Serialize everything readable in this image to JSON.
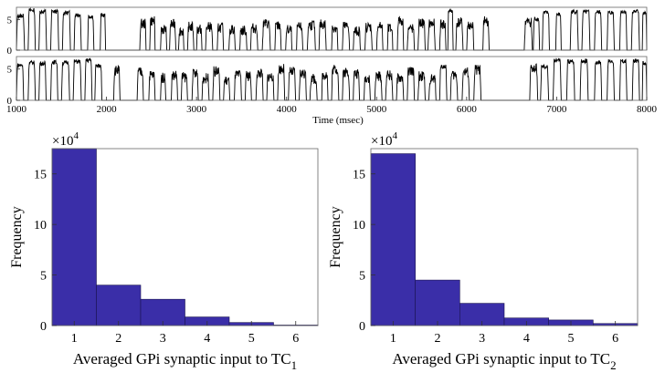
{
  "chart_data": [
    {
      "type": "line",
      "panel": "trace-top",
      "xlim": [
        1000,
        8000
      ],
      "ylim": [
        0,
        7
      ],
      "yticks": [
        0,
        5
      ],
      "xlabel": "",
      "note": "upper GPi synaptic input trace (burst pattern read approximately)",
      "bursts": [
        [
          1000,
          1090,
          5.6
        ],
        [
          1130,
          1210,
          6.5
        ],
        [
          1250,
          1335,
          6.3
        ],
        [
          1380,
          1470,
          6.3
        ],
        [
          1510,
          1600,
          6.1
        ],
        [
          1640,
          1720,
          5.8
        ],
        [
          1790,
          1860,
          5.5
        ],
        [
          1930,
          1990,
          5.7
        ],
        [
          2370,
          2440,
          4.3
        ],
        [
          2480,
          2540,
          4.8
        ],
        [
          2600,
          2670,
          3.4
        ],
        [
          2700,
          2770,
          4.2
        ],
        [
          2800,
          2860,
          3.1
        ],
        [
          2900,
          2970,
          3.8
        ],
        [
          3000,
          3060,
          3.4
        ],
        [
          3100,
          3180,
          3.8
        ],
        [
          3230,
          3300,
          3.7
        ],
        [
          3360,
          3430,
          3.4
        ],
        [
          3480,
          3560,
          3.2
        ],
        [
          3600,
          3680,
          3.6
        ],
        [
          3730,
          3820,
          4.3
        ],
        [
          3870,
          3940,
          4.0
        ],
        [
          3990,
          4060,
          3.3
        ],
        [
          4110,
          4180,
          3.7
        ],
        [
          4230,
          4320,
          4.1
        ],
        [
          4360,
          4440,
          4.2
        ],
        [
          4500,
          4570,
          3.7
        ],
        [
          4620,
          4700,
          3.9
        ],
        [
          4740,
          4820,
          3.1
        ],
        [
          4870,
          4950,
          3.8
        ],
        [
          5000,
          5070,
          3.9
        ],
        [
          5120,
          5180,
          3.5
        ],
        [
          5230,
          5300,
          4.8
        ],
        [
          5340,
          5420,
          3.5
        ],
        [
          5460,
          5540,
          4.4
        ],
        [
          5570,
          5650,
          4.3
        ],
        [
          5700,
          5770,
          4.2
        ],
        [
          5790,
          5850,
          6.4
        ],
        [
          5880,
          5960,
          4.5
        ],
        [
          6000,
          6080,
          4.0
        ],
        [
          6180,
          6250,
          4.7
        ],
        [
          6640,
          6730,
          4.6
        ],
        [
          6740,
          6810,
          5.1
        ],
        [
          6840,
          6920,
          6.1
        ],
        [
          6990,
          7050,
          5.8
        ],
        [
          7150,
          7240,
          6.3
        ],
        [
          7280,
          7370,
          6.2
        ],
        [
          7420,
          7500,
          6.2
        ],
        [
          7560,
          7640,
          6.1
        ],
        [
          7700,
          7780,
          6.3
        ],
        [
          7830,
          7920,
          6.3
        ],
        [
          7950,
          8000,
          6.0
        ]
      ]
    },
    {
      "type": "line",
      "panel": "trace-bottom",
      "xlim": [
        1000,
        8000
      ],
      "ylim": [
        0,
        7
      ],
      "yticks": [
        0,
        5
      ],
      "xlabel": "Time (msec)",
      "xticks": [
        1000,
        2000,
        3000,
        4000,
        5000,
        6000,
        7000,
        8000
      ],
      "note": "lower GPi synaptic input trace (burst pattern read approximately)",
      "bursts": [
        [
          1000,
          1080,
          5.6
        ],
        [
          1130,
          1210,
          6.0
        ],
        [
          1250,
          1330,
          5.9
        ],
        [
          1380,
          1460,
          6.1
        ],
        [
          1500,
          1590,
          6.0
        ],
        [
          1630,
          1720,
          6.2
        ],
        [
          1760,
          1840,
          6.4
        ],
        [
          1870,
          1950,
          5.5
        ],
        [
          2080,
          2150,
          4.8
        ],
        [
          2340,
          2410,
          4.5
        ],
        [
          2470,
          2540,
          4.0
        ],
        [
          2600,
          2660,
          3.6
        ],
        [
          2720,
          2790,
          4.0
        ],
        [
          2830,
          2900,
          3.7
        ],
        [
          2950,
          3020,
          4.2
        ],
        [
          3060,
          3140,
          3.5
        ],
        [
          3180,
          3260,
          4.6
        ],
        [
          3300,
          3370,
          3.1
        ],
        [
          3420,
          3500,
          4.0
        ],
        [
          3540,
          3610,
          3.9
        ],
        [
          3660,
          3740,
          4.3
        ],
        [
          3780,
          3860,
          3.8
        ],
        [
          3900,
          3980,
          5.0
        ],
        [
          4020,
          4100,
          4.5
        ],
        [
          4140,
          4220,
          4.3
        ],
        [
          4260,
          4340,
          3.4
        ],
        [
          4390,
          4460,
          4.1
        ],
        [
          4500,
          4580,
          5.0
        ],
        [
          4620,
          4700,
          4.5
        ],
        [
          4740,
          4810,
          4.2
        ],
        [
          4860,
          4930,
          3.6
        ],
        [
          4980,
          5060,
          3.8
        ],
        [
          5100,
          5180,
          4.0
        ],
        [
          5220,
          5300,
          3.5
        ],
        [
          5340,
          5420,
          4.6
        ],
        [
          5460,
          5540,
          3.9
        ],
        [
          5580,
          5660,
          3.4
        ],
        [
          5700,
          5780,
          5.4
        ],
        [
          5820,
          5900,
          4.0
        ],
        [
          5950,
          6030,
          4.5
        ],
        [
          6080,
          6160,
          4.9
        ],
        [
          6700,
          6790,
          5.0
        ],
        [
          6820,
          6910,
          5.3
        ],
        [
          6960,
          7050,
          6.4
        ],
        [
          7110,
          7200,
          6.2
        ],
        [
          7260,
          7350,
          6.3
        ],
        [
          7420,
          7500,
          6.1
        ],
        [
          7560,
          7640,
          6.2
        ],
        [
          7700,
          7780,
          6.2
        ],
        [
          7840,
          7920,
          6.3
        ],
        [
          7950,
          8000,
          6.0
        ]
      ]
    },
    {
      "type": "bar",
      "panel": "hist-left",
      "title": "",
      "categories": [
        "1",
        "2",
        "3",
        "4",
        "5",
        "6"
      ],
      "values": [
        17.5,
        4.0,
        2.6,
        0.85,
        0.3,
        0.05
      ],
      "yticks": [
        0,
        5,
        10,
        15
      ],
      "ylim": [
        0,
        17.5
      ],
      "xlim": [
        0.5,
        6.5
      ],
      "ylabel": "Frequency",
      "multiplier": "×10",
      "multiplier_exp": "4",
      "xlabel_main": "Averaged GPi synaptic input to TC",
      "xlabel_sub": "1",
      "bar_color": "#3a2ea8"
    },
    {
      "type": "bar",
      "panel": "hist-right",
      "title": "",
      "categories": [
        "1",
        "2",
        "3",
        "4",
        "5",
        "6"
      ],
      "values": [
        17.0,
        4.5,
        2.2,
        0.75,
        0.55,
        0.2
      ],
      "yticks": [
        0,
        5,
        10,
        15
      ],
      "ylim": [
        0,
        17.5
      ],
      "xlim": [
        0.5,
        6.5
      ],
      "ylabel": "Frequency",
      "multiplier": "×10",
      "multiplier_exp": "4",
      "xlabel_main": "Averaged GPi synaptic input to TC",
      "xlabel_sub": "2",
      "bar_color": "#3a2ea8"
    }
  ]
}
